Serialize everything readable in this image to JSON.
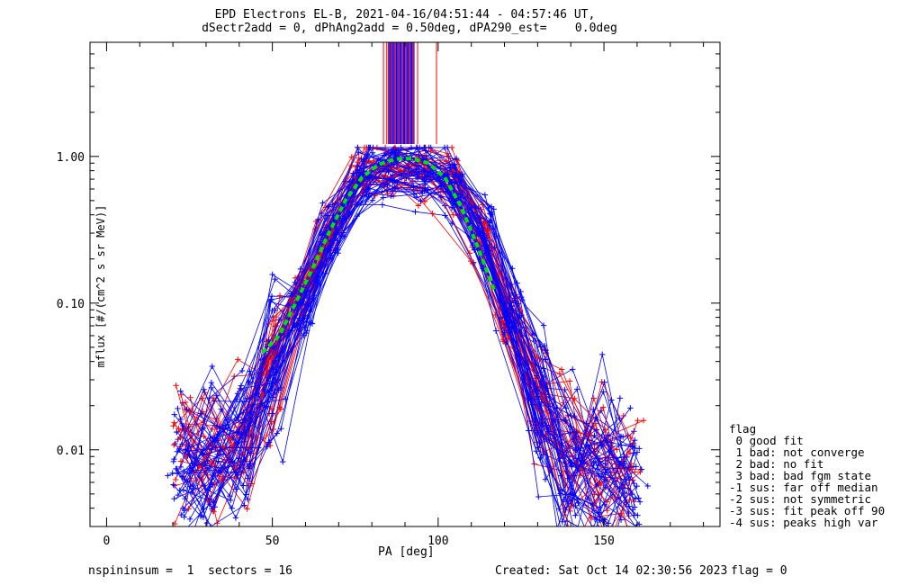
{
  "chart_data": {
    "type": "line",
    "title": "EPD Electrons EL-B, 2021-04-16/04:51:44 - 04:57:46 UT,",
    "subtitle": "dSectr2add = 0, dPhAng2add = 0.50deg, dPA290_est=    0.0deg",
    "xlabel": "PA [deg]",
    "ylabel": "mflux [#/(cm^2 s sr MeV)]",
    "xlim": [
      -5,
      185
    ],
    "ylim": [
      0.003,
      6.0
    ],
    "yscale": "log",
    "xticks": [
      "0",
      "50",
      "100",
      "150"
    ],
    "yticks": [
      "0.01",
      "0.10",
      "1.00"
    ],
    "series_colors": {
      "red": "#ff0000",
      "blue": "#0000ff",
      "fit": "#00e000"
    },
    "fit_curve": {
      "x": [
        47,
        52,
        57,
        62,
        67,
        72,
        77,
        82,
        87,
        92,
        97,
        102,
        107,
        112,
        117
      ],
      "y": [
        0.046,
        0.06,
        0.1,
        0.17,
        0.3,
        0.5,
        0.72,
        0.88,
        0.96,
        0.97,
        0.9,
        0.72,
        0.45,
        0.24,
        0.12
      ]
    },
    "typical_profile": {
      "x": [
        23,
        32,
        41,
        50,
        59,
        68,
        77,
        86,
        95,
        104,
        113,
        122,
        131,
        140,
        149,
        158
      ],
      "y": [
        0.008,
        0.009,
        0.011,
        0.04,
        0.1,
        0.3,
        0.75,
        0.8,
        0.8,
        0.65,
        0.3,
        0.08,
        0.02,
        0.008,
        0.007,
        0.006
      ]
    }
  },
  "legend": {
    "title": "flag",
    "items": [
      " 0 good fit",
      " 1 bad: not converge",
      " 2 bad: no fit",
      " 3 bad: bad fgm state",
      "-1 sus: far off median",
      "-2 sus: not symmetric",
      "-3 sus: fit peak off 90",
      "-4 sus: peaks high var"
    ]
  },
  "footer": {
    "left": "nspininsum =  1  sectors = 16",
    "middle": "Created: Sat Oct 14 02:30:56 2023",
    "right": "flag = 0"
  }
}
